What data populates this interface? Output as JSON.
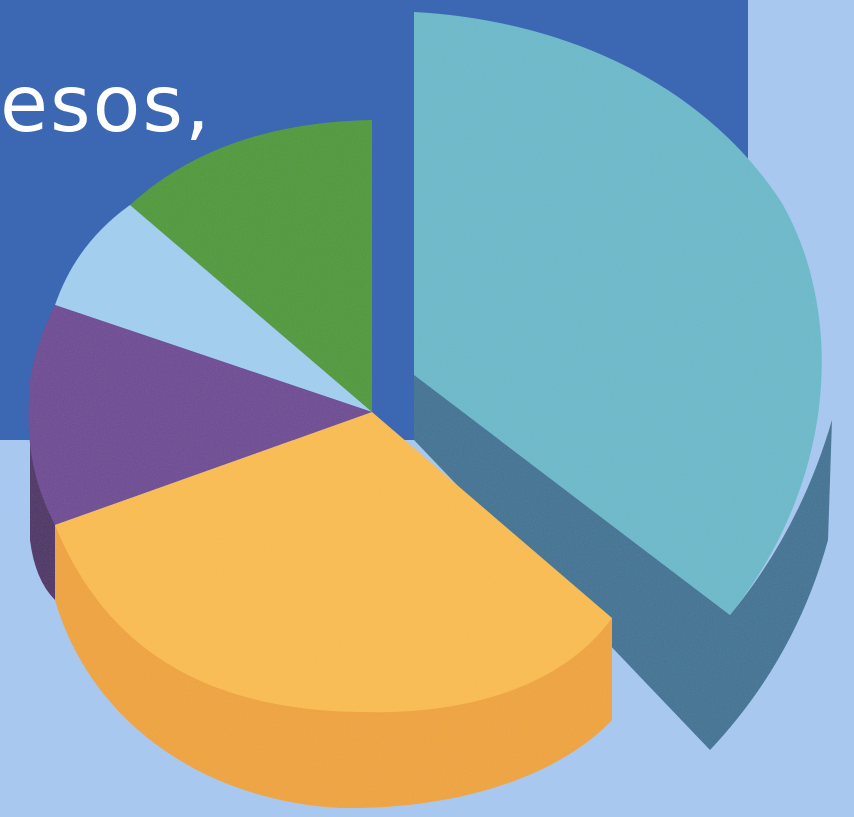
{
  "slide": {
    "title_fragment": "esos,"
  },
  "illustration": {
    "icon": "3d-pie-chart-illustration",
    "colors": {
      "background": "#a8c8f0",
      "panel": "#3c67b3",
      "teal": "#6cbacb",
      "teal_side": "#3f7394",
      "yellow": "#fbbd50",
      "yellow_side": "#f0a43a",
      "purple": "#6e4a94",
      "purple_side": "#4e3266",
      "light_blue": "#a3cff0",
      "green": "#4f9a39"
    }
  }
}
